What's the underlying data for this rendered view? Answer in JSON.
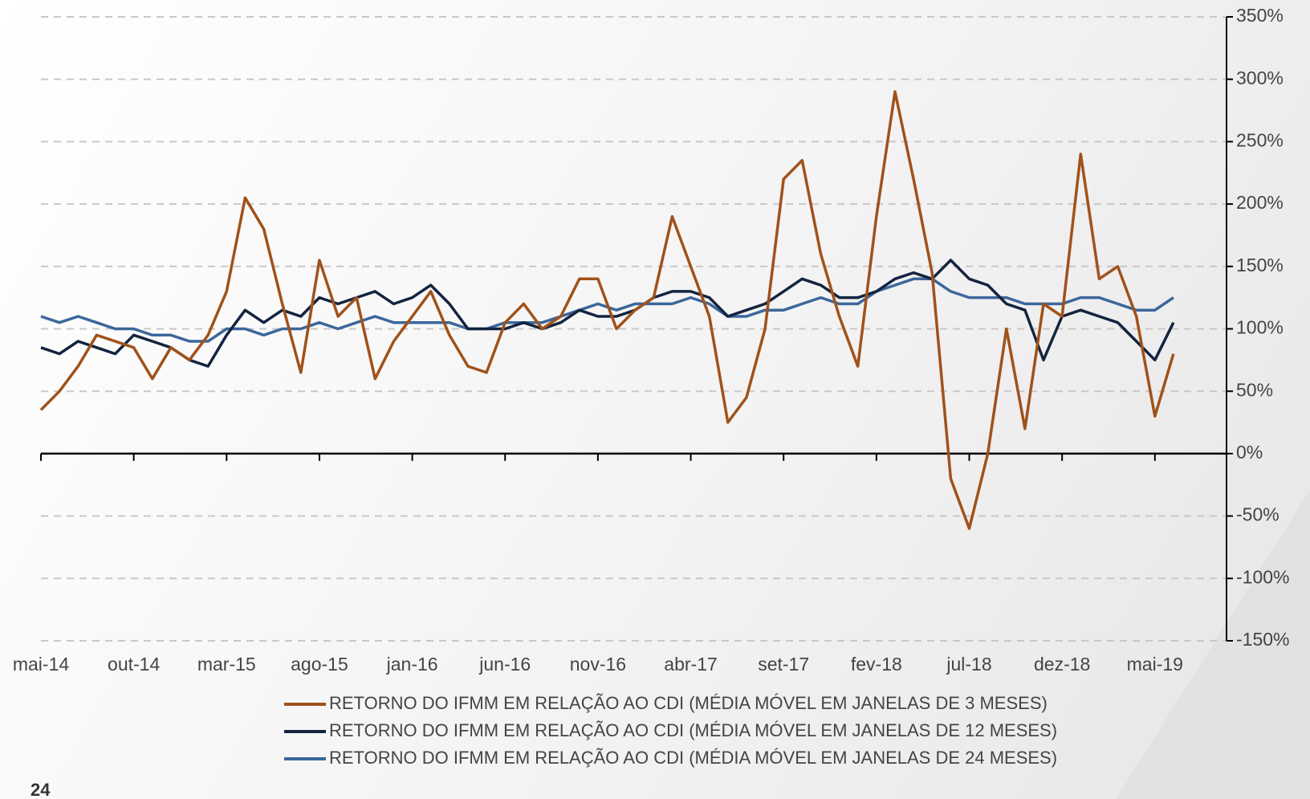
{
  "page_number": "24",
  "chart_data": {
    "type": "line",
    "categories": [
      "mai-14",
      null,
      null,
      null,
      null,
      "out-14",
      null,
      null,
      null,
      null,
      "mar-15",
      null,
      null,
      null,
      null,
      "ago-15",
      null,
      null,
      null,
      null,
      "jan-16",
      null,
      null,
      null,
      null,
      "jun-16",
      null,
      null,
      null,
      null,
      "nov-16",
      null,
      null,
      null,
      null,
      "abr-17",
      null,
      null,
      null,
      null,
      "set-17",
      null,
      null,
      null,
      null,
      "fev-18",
      null,
      null,
      null,
      null,
      "jul-18",
      null,
      null,
      null,
      null,
      "dez-18",
      null,
      null,
      null,
      null,
      "mai-19",
      null
    ],
    "series": [
      {
        "name": "RETORNO DO IFMM EM RELAÇÃO AO CDI (MÉDIA MÓVEL EM JANELAS DE 3 MESES)",
        "color": "#a0521a",
        "values": [
          35,
          50,
          70,
          95,
          90,
          85,
          60,
          85,
          75,
          95,
          130,
          205,
          180,
          120,
          65,
          155,
          110,
          125,
          60,
          90,
          110,
          130,
          95,
          70,
          65,
          105,
          120,
          100,
          110,
          140,
          140,
          100,
          115,
          125,
          190,
          150,
          110,
          25,
          45,
          100,
          220,
          235,
          160,
          110,
          70,
          190,
          290,
          220,
          145,
          -20,
          -60,
          0,
          100,
          20,
          120,
          110,
          240,
          140,
          150,
          110,
          30,
          80
        ]
      },
      {
        "name": "RETORNO DO IFMM EM RELAÇÃO AO CDI (MÉDIA MÓVEL EM JANELAS DE 12 MESES)",
        "color": "#14243f",
        "values": [
          85,
          80,
          90,
          85,
          80,
          95,
          90,
          85,
          75,
          70,
          95,
          115,
          105,
          115,
          110,
          125,
          120,
          125,
          130,
          120,
          125,
          135,
          120,
          100,
          100,
          100,
          105,
          100,
          105,
          115,
          110,
          110,
          115,
          125,
          130,
          130,
          125,
          110,
          115,
          120,
          130,
          140,
          135,
          125,
          125,
          130,
          140,
          145,
          140,
          155,
          140,
          135,
          120,
          115,
          75,
          110,
          115,
          110,
          105,
          90,
          75,
          105
        ]
      },
      {
        "name": "RETORNO DO IFMM EM RELAÇÃO AO CDI (MÉDIA MÓVEL EM JANELAS DE 24 MESES)",
        "color": "#3b679b",
        "values": [
          110,
          105,
          110,
          105,
          100,
          100,
          95,
          95,
          90,
          90,
          100,
          100,
          95,
          100,
          100,
          105,
          100,
          105,
          110,
          105,
          105,
          105,
          105,
          100,
          100,
          105,
          105,
          105,
          110,
          115,
          120,
          115,
          120,
          120,
          120,
          125,
          120,
          110,
          110,
          115,
          115,
          120,
          125,
          120,
          120,
          130,
          135,
          140,
          140,
          130,
          125,
          125,
          125,
          120,
          120,
          120,
          125,
          125,
          120,
          115,
          115,
          125
        ]
      }
    ],
    "ylim": [
      -150,
      350
    ],
    "yticks": [
      {
        "value": -150,
        "label": "-150%"
      },
      {
        "value": -100,
        "label": "-100%"
      },
      {
        "value": -50,
        "label": "-50%"
      },
      {
        "value": 0,
        "label": "0%"
      },
      {
        "value": 50,
        "label": "50%"
      },
      {
        "value": 100,
        "label": "100%"
      },
      {
        "value": 150,
        "label": "150%"
      },
      {
        "value": 200,
        "label": "200%"
      },
      {
        "value": 250,
        "label": "250%"
      },
      {
        "value": 300,
        "label": "300%"
      },
      {
        "value": 350,
        "label": "350%"
      }
    ],
    "grid": true
  }
}
